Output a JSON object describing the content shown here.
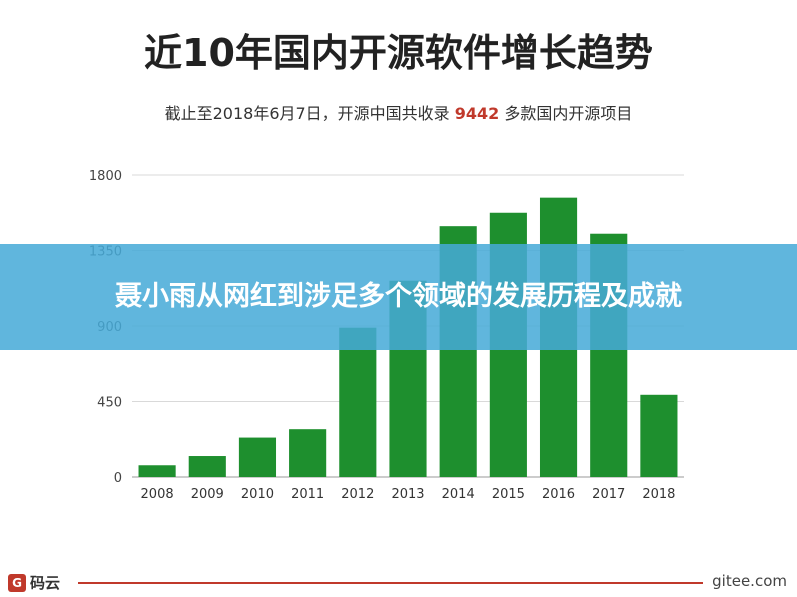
{
  "header": {
    "title": "近10年国内开源软件增长趋势",
    "subtitle_prefix": "截止至2018年6月7日，开源中国共收录 ",
    "subtitle_highlight": "9442",
    "subtitle_suffix": " 多款国内开源项目"
  },
  "overlay": {
    "banner_text": "聂小雨从网红到涉足多个领域的发展历程及成就"
  },
  "footer": {
    "logo_icon": "gitee-logo-icon",
    "logo_text": "码云",
    "url": "gitee.com"
  },
  "colors": {
    "bar": "#1e8f2e",
    "highlight": "#c0392b",
    "banner": "#46aad7"
  },
  "chart_data": {
    "type": "bar",
    "categories": [
      "2008",
      "2009",
      "2010",
      "2011",
      "2012",
      "2013",
      "2014",
      "2015",
      "2016",
      "2017",
      "2018"
    ],
    "values": [
      70,
      125,
      235,
      285,
      890,
      1170,
      1495,
      1575,
      1665,
      1450,
      490
    ],
    "yticks": [
      0,
      450,
      900,
      1350,
      1800
    ],
    "ylim": [
      0,
      1800
    ],
    "grid": true
  }
}
